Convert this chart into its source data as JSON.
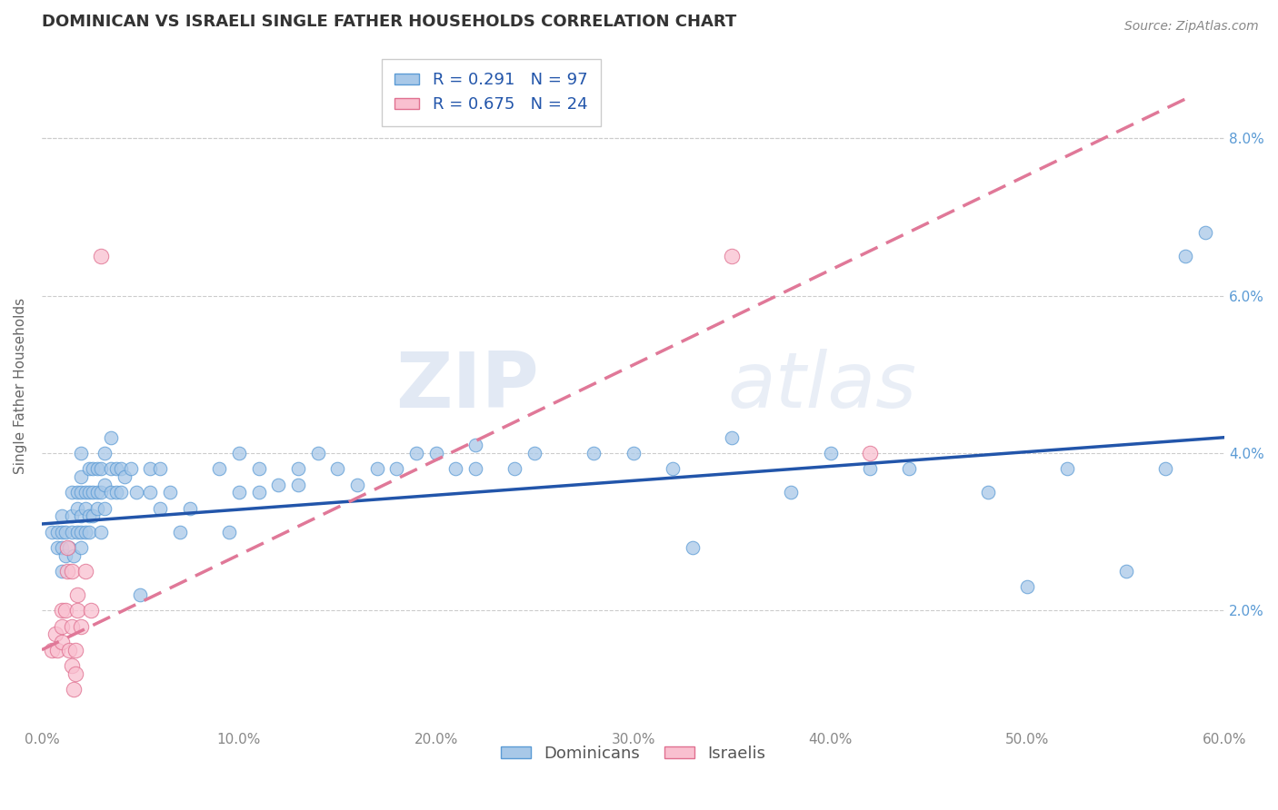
{
  "title": "DOMINICAN VS ISRAELI SINGLE FATHER HOUSEHOLDS CORRELATION CHART",
  "source": "Source: ZipAtlas.com",
  "ylabel": "Single Father Households",
  "xlim": [
    0.0,
    0.6
  ],
  "ylim": [
    0.005,
    0.092
  ],
  "xticks": [
    0.0,
    0.1,
    0.2,
    0.3,
    0.4,
    0.5,
    0.6
  ],
  "yticks": [
    0.02,
    0.04,
    0.06,
    0.08
  ],
  "dominican_color": "#a8c8e8",
  "dominican_edge": "#5b9bd5",
  "israeli_color": "#f9c0d0",
  "israeli_edge": "#e07090",
  "dominican_line_color": "#2255aa",
  "israeli_line_color": "#e07898",
  "R_dominican": 0.291,
  "N_dominican": 97,
  "R_israeli": 0.675,
  "N_israeli": 24,
  "dominican_scatter": [
    [
      0.005,
      0.03
    ],
    [
      0.008,
      0.028
    ],
    [
      0.008,
      0.03
    ],
    [
      0.01,
      0.025
    ],
    [
      0.01,
      0.028
    ],
    [
      0.01,
      0.03
    ],
    [
      0.01,
      0.032
    ],
    [
      0.012,
      0.027
    ],
    [
      0.012,
      0.03
    ],
    [
      0.014,
      0.028
    ],
    [
      0.015,
      0.03
    ],
    [
      0.015,
      0.032
    ],
    [
      0.015,
      0.035
    ],
    [
      0.016,
      0.027
    ],
    [
      0.018,
      0.03
    ],
    [
      0.018,
      0.033
    ],
    [
      0.018,
      0.035
    ],
    [
      0.02,
      0.028
    ],
    [
      0.02,
      0.03
    ],
    [
      0.02,
      0.032
    ],
    [
      0.02,
      0.035
    ],
    [
      0.02,
      0.037
    ],
    [
      0.02,
      0.04
    ],
    [
      0.022,
      0.03
    ],
    [
      0.022,
      0.033
    ],
    [
      0.022,
      0.035
    ],
    [
      0.024,
      0.03
    ],
    [
      0.024,
      0.032
    ],
    [
      0.024,
      0.035
    ],
    [
      0.024,
      0.038
    ],
    [
      0.026,
      0.032
    ],
    [
      0.026,
      0.035
    ],
    [
      0.026,
      0.038
    ],
    [
      0.028,
      0.033
    ],
    [
      0.028,
      0.035
    ],
    [
      0.028,
      0.038
    ],
    [
      0.03,
      0.03
    ],
    [
      0.03,
      0.035
    ],
    [
      0.03,
      0.038
    ],
    [
      0.032,
      0.033
    ],
    [
      0.032,
      0.036
    ],
    [
      0.032,
      0.04
    ],
    [
      0.035,
      0.035
    ],
    [
      0.035,
      0.038
    ],
    [
      0.035,
      0.042
    ],
    [
      0.038,
      0.035
    ],
    [
      0.038,
      0.038
    ],
    [
      0.04,
      0.035
    ],
    [
      0.04,
      0.038
    ],
    [
      0.042,
      0.037
    ],
    [
      0.045,
      0.038
    ],
    [
      0.048,
      0.035
    ],
    [
      0.05,
      0.022
    ],
    [
      0.055,
      0.035
    ],
    [
      0.055,
      0.038
    ],
    [
      0.06,
      0.033
    ],
    [
      0.06,
      0.038
    ],
    [
      0.065,
      0.035
    ],
    [
      0.07,
      0.03
    ],
    [
      0.075,
      0.033
    ],
    [
      0.09,
      0.038
    ],
    [
      0.095,
      0.03
    ],
    [
      0.1,
      0.035
    ],
    [
      0.1,
      0.04
    ],
    [
      0.11,
      0.035
    ],
    [
      0.11,
      0.038
    ],
    [
      0.12,
      0.036
    ],
    [
      0.13,
      0.036
    ],
    [
      0.13,
      0.038
    ],
    [
      0.14,
      0.04
    ],
    [
      0.15,
      0.038
    ],
    [
      0.16,
      0.036
    ],
    [
      0.17,
      0.038
    ],
    [
      0.18,
      0.038
    ],
    [
      0.19,
      0.04
    ],
    [
      0.2,
      0.04
    ],
    [
      0.21,
      0.038
    ],
    [
      0.22,
      0.038
    ],
    [
      0.22,
      0.041
    ],
    [
      0.24,
      0.038
    ],
    [
      0.25,
      0.04
    ],
    [
      0.28,
      0.04
    ],
    [
      0.3,
      0.04
    ],
    [
      0.32,
      0.038
    ],
    [
      0.33,
      0.028
    ],
    [
      0.35,
      0.042
    ],
    [
      0.38,
      0.035
    ],
    [
      0.4,
      0.04
    ],
    [
      0.42,
      0.038
    ],
    [
      0.44,
      0.038
    ],
    [
      0.48,
      0.035
    ],
    [
      0.5,
      0.023
    ],
    [
      0.52,
      0.038
    ],
    [
      0.55,
      0.025
    ],
    [
      0.57,
      0.038
    ],
    [
      0.58,
      0.065
    ],
    [
      0.59,
      0.068
    ]
  ],
  "israeli_scatter": [
    [
      0.005,
      0.015
    ],
    [
      0.007,
      0.017
    ],
    [
      0.008,
      0.015
    ],
    [
      0.01,
      0.016
    ],
    [
      0.01,
      0.018
    ],
    [
      0.01,
      0.02
    ],
    [
      0.012,
      0.02
    ],
    [
      0.013,
      0.025
    ],
    [
      0.013,
      0.028
    ],
    [
      0.014,
      0.015
    ],
    [
      0.015,
      0.018
    ],
    [
      0.015,
      0.025
    ],
    [
      0.015,
      0.013
    ],
    [
      0.016,
      0.01
    ],
    [
      0.017,
      0.012
    ],
    [
      0.017,
      0.015
    ],
    [
      0.018,
      0.02
    ],
    [
      0.018,
      0.022
    ],
    [
      0.02,
      0.018
    ],
    [
      0.022,
      0.025
    ],
    [
      0.025,
      0.02
    ],
    [
      0.03,
      0.065
    ],
    [
      0.35,
      0.065
    ],
    [
      0.42,
      0.04
    ]
  ],
  "dominican_trendline": [
    [
      0.0,
      0.031
    ],
    [
      0.6,
      0.042
    ]
  ],
  "israeli_trendline": [
    [
      0.0,
      0.015
    ],
    [
      0.58,
      0.085
    ]
  ],
  "watermark_zip": "ZIP",
  "watermark_atlas": "atlas",
  "background_color": "#ffffff",
  "grid_color": "#cccccc",
  "title_color": "#333333",
  "axis_label_color": "#5b9bd5",
  "tick_color": "#888888",
  "legend_label_dominicans": "Dominicans",
  "legend_label_israelis": "Israelis"
}
